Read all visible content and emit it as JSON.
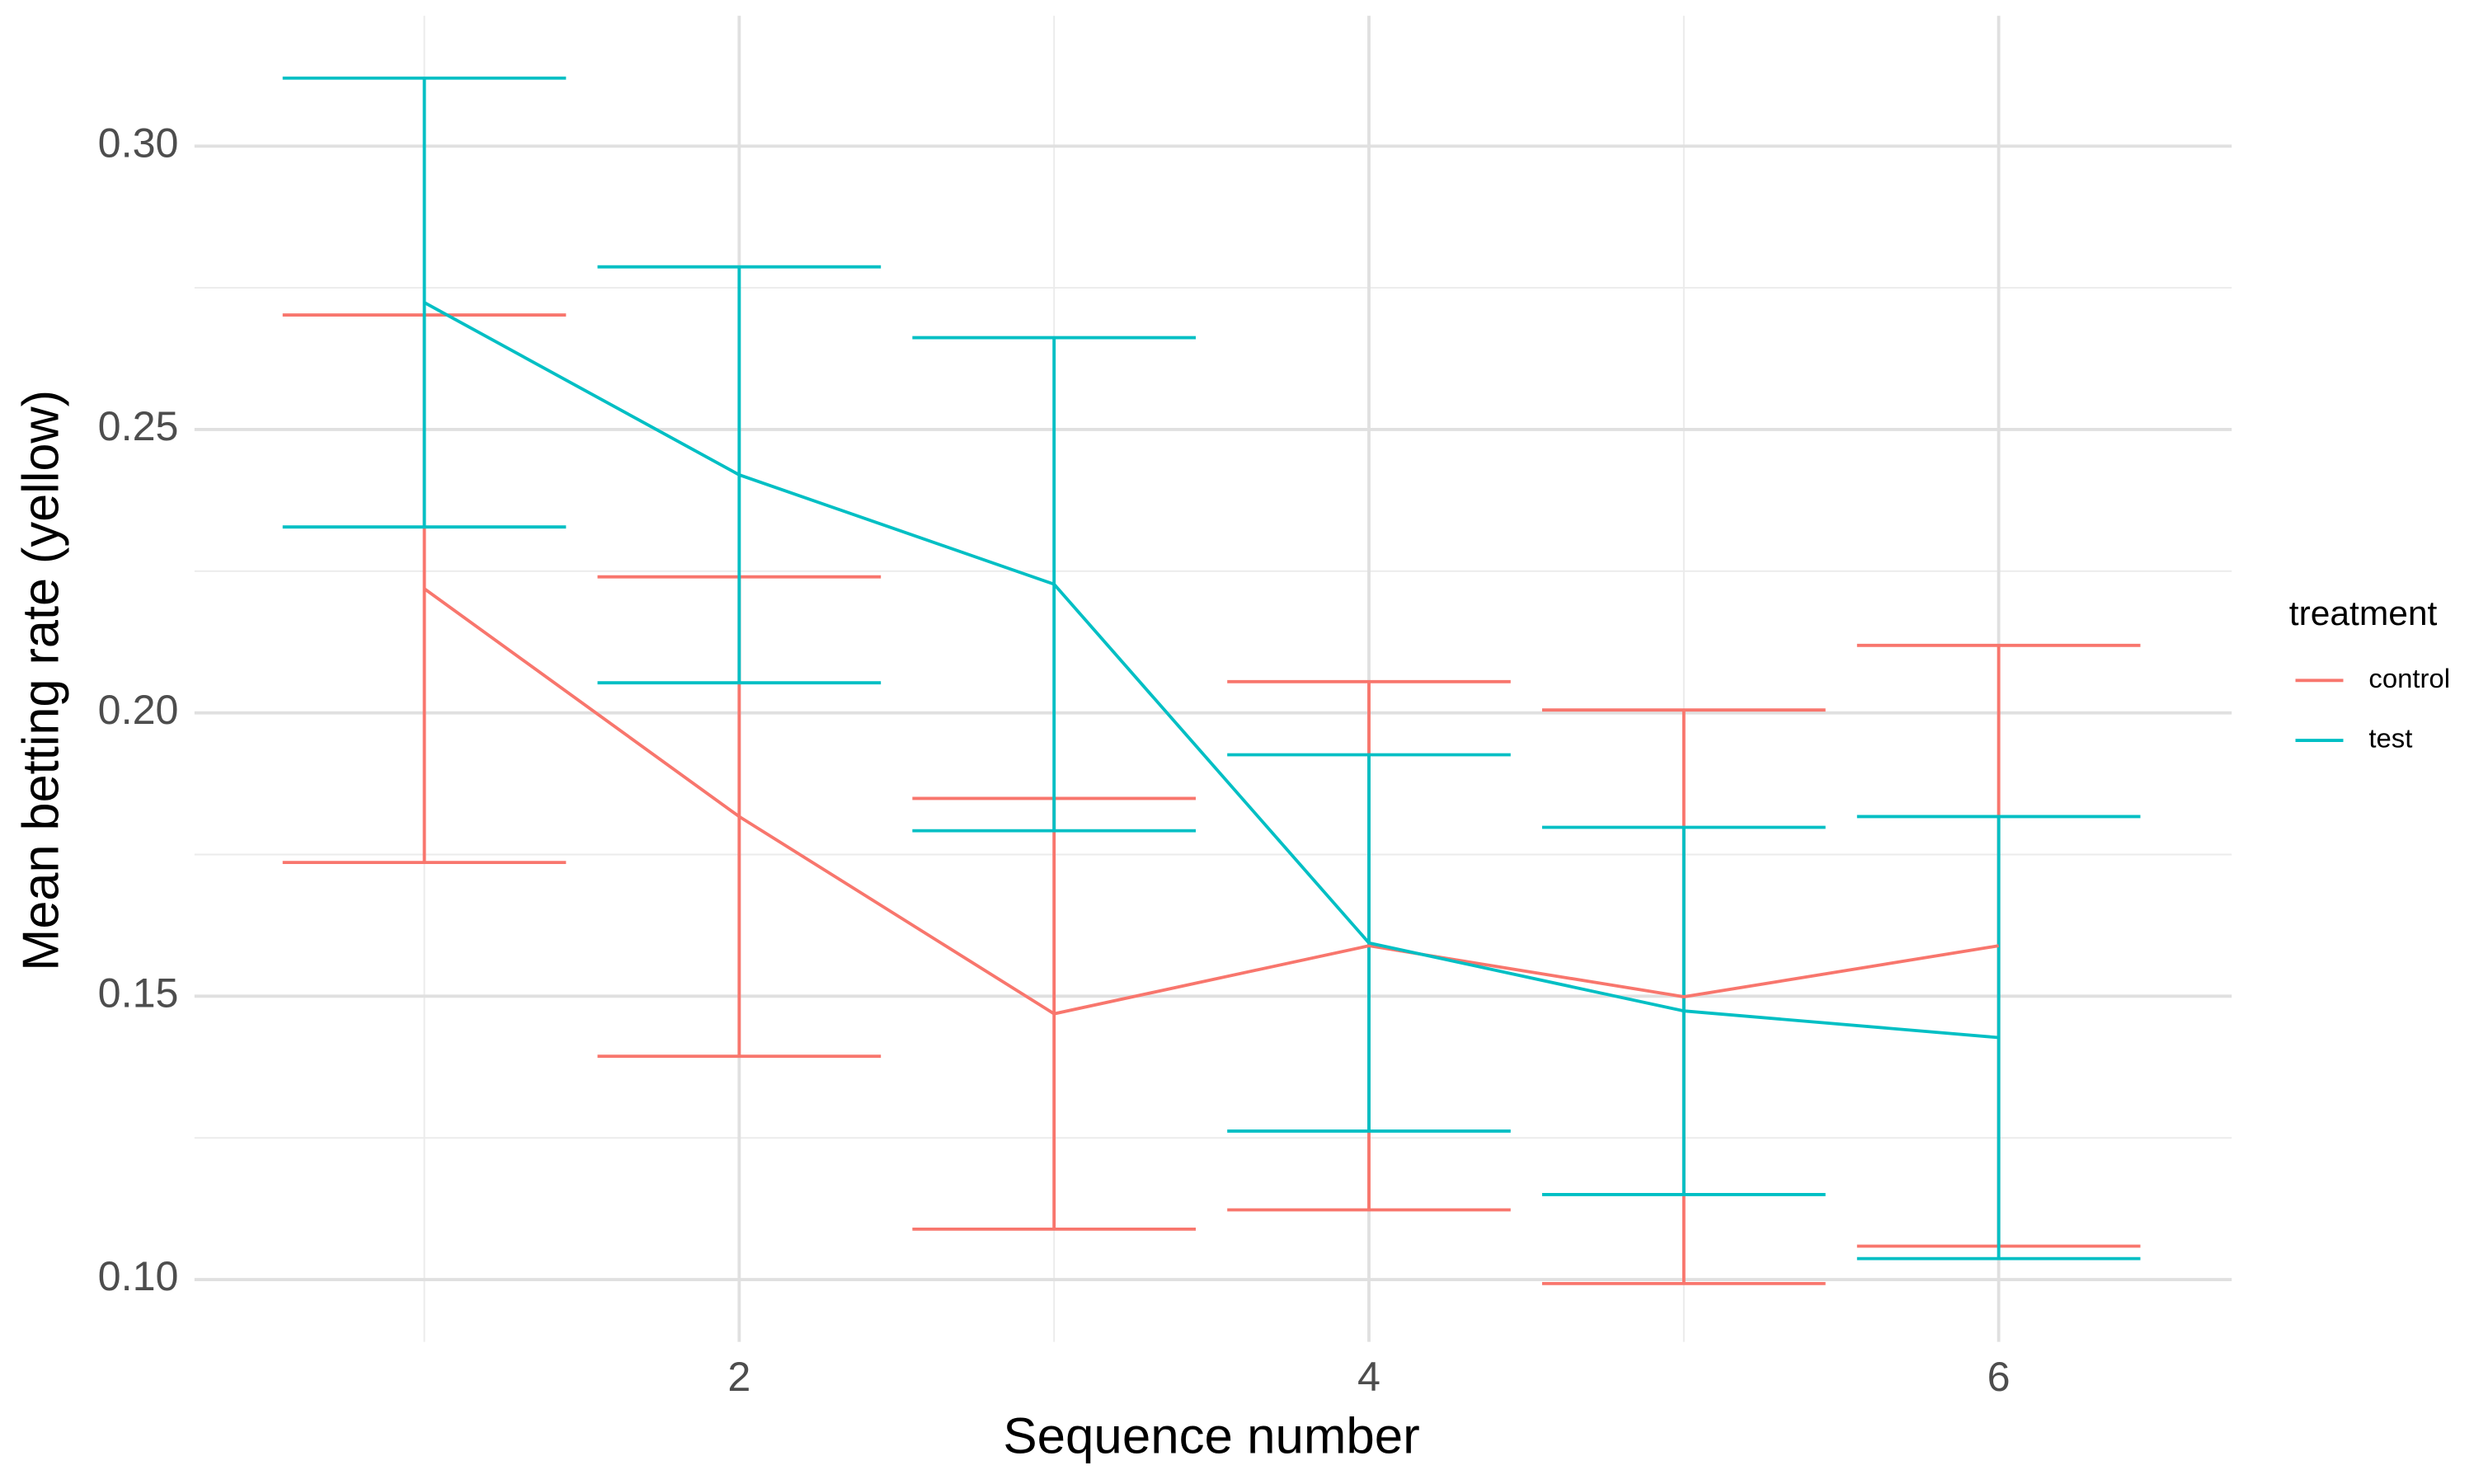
{
  "chart_data": {
    "type": "line",
    "x_label": "Sequence number",
    "y_label": "Mean betting rate (yellow)",
    "legend_title": "treatment",
    "legend_position": "right",
    "grid": true,
    "x": [
      1,
      2,
      3,
      4,
      5,
      6
    ],
    "xlim": [
      0.27,
      6.74
    ],
    "xticks": [
      2,
      4,
      6
    ],
    "x_minor_ticks": [
      1,
      3,
      5
    ],
    "ylim": [
      0.089,
      0.323
    ],
    "yticks": [
      {
        "value": 0.1,
        "label": "0.10"
      },
      {
        "value": 0.15,
        "label": "0.15"
      },
      {
        "value": 0.2,
        "label": "0.20"
      },
      {
        "value": 0.25,
        "label": "0.25"
      },
      {
        "value": 0.3,
        "label": "0.30"
      }
    ],
    "y_minor_ticks": [
      0.125,
      0.175,
      0.225,
      0.275
    ],
    "series": [
      {
        "name": "control",
        "color": "#f8766d",
        "values": [
          0.2219,
          0.1817,
          0.1469,
          0.1589,
          0.1499,
          0.1589
        ],
        "errors": [
          0.0483,
          0.0423,
          0.038,
          0.0466,
          0.0506,
          0.053
        ]
      },
      {
        "name": "test",
        "color": "#00bfc4",
        "values": [
          0.2724,
          0.242,
          0.2227,
          0.1594,
          0.1474,
          0.1427
        ],
        "errors": [
          0.0396,
          0.0367,
          0.0435,
          0.0332,
          0.0324,
          0.039
        ]
      }
    ]
  }
}
